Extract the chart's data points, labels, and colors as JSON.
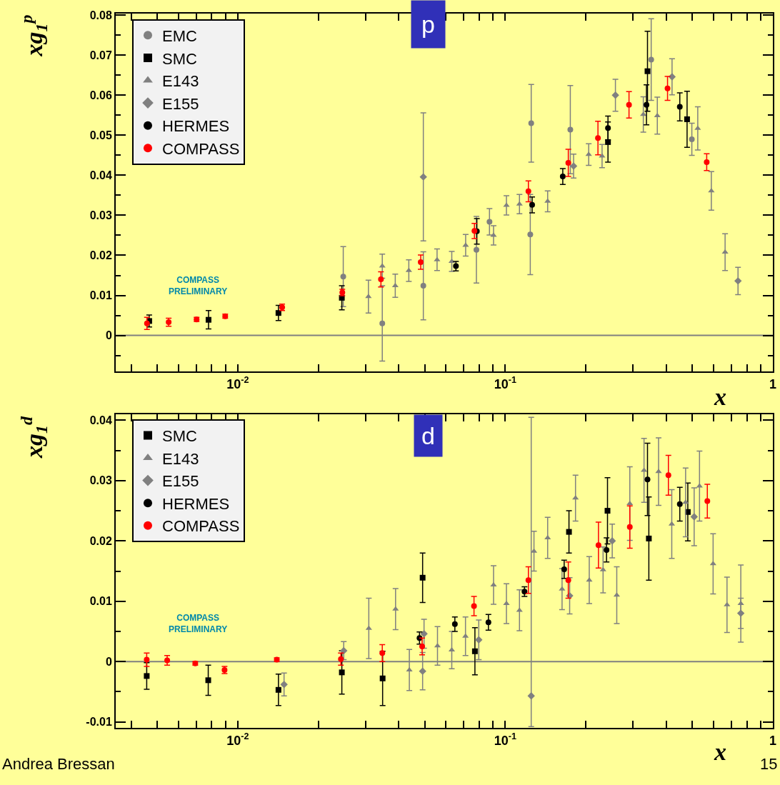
{
  "chart_data": [
    {
      "type": "scatter",
      "ylabel": "xg$_{1}$$^{p}$",
      "xlabel": "x",
      "annotations": [
        "p",
        "COMPASS PRELIMINARY"
      ],
      "xlim": [
        0.0035,
        1
      ],
      "ylim": [
        -0.009,
        0.0804
      ],
      "log": "x",
      "grid": false,
      "legend": "top left",
      "xticks": [
        {
          "value": 0.004,
          "label": null
        },
        {
          "value": 0.005,
          "label": null
        },
        {
          "value": 0.006,
          "label": null
        },
        {
          "value": 0.007,
          "label": null
        },
        {
          "value": 0.008,
          "label": null
        },
        {
          "value": 0.009,
          "label": null
        },
        {
          "value": 0.01,
          "label": "10$^{-2}$"
        },
        {
          "value": 0.02,
          "label": null
        },
        {
          "value": 0.03,
          "label": null
        },
        {
          "value": 0.04,
          "label": null
        },
        {
          "value": 0.05,
          "label": null
        },
        {
          "value": 0.06,
          "label": null
        },
        {
          "value": 0.07,
          "label": null
        },
        {
          "value": 0.08,
          "label": null
        },
        {
          "value": 0.09,
          "label": null
        },
        {
          "value": 0.1,
          "label": "10$^{-1}$"
        },
        {
          "value": 0.2,
          "label": null
        },
        {
          "value": 0.3,
          "label": null
        },
        {
          "value": 0.4,
          "label": null
        },
        {
          "value": 0.5,
          "label": null
        },
        {
          "value": 0.6,
          "label": null
        },
        {
          "value": 0.7,
          "label": null
        },
        {
          "value": 0.8,
          "label": null
        },
        {
          "value": 0.9,
          "label": null
        },
        {
          "value": 1,
          "label": "1"
        }
      ],
      "yticks": [
        0,
        0.01,
        0.02,
        0.03,
        0.04,
        0.05,
        0.06,
        0.07,
        0.08
      ],
      "ref_lines": [
        {
          "axis": "y",
          "value": 0,
          "color": "#808080"
        }
      ],
      "series": [
        {
          "name": "EMC",
          "color": "#808080",
          "marker": "circle",
          "x": [
            0.0248,
            0.0347,
            0.0494,
            0.078,
            0.0873,
            0.124,
            0.125,
            0.175,
            0.351,
            0.498
          ],
          "values": [
            0.0147,
            0.003,
            0.0124,
            0.0214,
            0.0284,
            0.0252,
            0.053,
            0.0514,
            0.0689,
            0.049
          ],
          "errors": [
            0.0075,
            0.0094,
            0.0085,
            0.0083,
            0.0033,
            0.01,
            0.0097,
            0.011,
            0.0102,
            0.004
          ]
        },
        {
          "name": "SMC",
          "color": "#000000",
          "marker": "square",
          "x": [
            0.00467,
            0.00778,
            0.0142,
            0.0245,
            0.242,
            0.34,
            0.478
          ],
          "values": [
            0.0036,
            0.0039,
            0.0056,
            0.0094,
            0.0483,
            0.066,
            0.054
          ],
          "errors": [
            0.0015,
            0.0023,
            0.0019,
            0.003,
            0.005,
            0.01,
            0.007
          ]
        },
        {
          "name": "E143",
          "color": "#808080",
          "marker": "triangle",
          "x": [
            0.0308,
            0.0347,
            0.0388,
            0.0436,
            0.0556,
            0.0631,
            0.0711,
            0.0904,
            0.101,
            0.113,
            0.144,
            0.205,
            0.23,
            0.328,
            0.37,
            0.524,
            0.589,
            0.663
          ],
          "values": [
            0.0097,
            0.0173,
            0.0124,
            0.0162,
            0.0189,
            0.0185,
            0.0225,
            0.025,
            0.0325,
            0.0328,
            0.0335,
            0.0452,
            0.0448,
            0.0552,
            0.0549,
            0.0517,
            0.0361,
            0.0208
          ],
          "errors": [
            0.0041,
            0.003,
            0.0029,
            0.0027,
            0.0027,
            0.0025,
            0.0027,
            0.0024,
            0.0024,
            0.0024,
            0.0026,
            0.0027,
            0.0029,
            0.0044,
            0.0046,
            0.0054,
            0.0048,
            0.0046
          ]
        },
        {
          "name": "E155",
          "color": "#808080",
          "marker": "diamond",
          "x": [
            0.0494,
            0.18,
            0.258,
            0.42,
            0.741
          ],
          "values": [
            0.0396,
            0.0423,
            0.06,
            0.0646,
            0.0136
          ],
          "errors": [
            0.016,
            0.003,
            0.004,
            0.0045,
            0.0034
          ]
        },
        {
          "name": "HERMES",
          "color": "#000000",
          "marker": "circle",
          "x": [
            0.0654,
            0.0783,
            0.126,
            0.164,
            0.242,
            0.337,
            0.449
          ],
          "values": [
            0.0173,
            0.026,
            0.0326,
            0.0397,
            0.0518,
            0.0576,
            0.0571
          ],
          "errors": [
            0.0012,
            0.0032,
            0.002,
            0.002,
            0.003,
            0.005,
            0.0035
          ]
        },
        {
          "name": "COMPASS",
          "color": "#ff0000",
          "marker": "circle",
          "x": [
            0.00458,
            0.00552,
            0.00702,
            0.00898,
            0.01466,
            0.0246,
            0.0343,
            0.0483,
            0.0767,
            0.122,
            0.172,
            0.222,
            0.29,
            0.404,
            0.566
          ],
          "values": [
            0.003,
            0.0033,
            0.004,
            0.0048,
            0.007,
            0.0107,
            0.014,
            0.0183,
            0.0261,
            0.036,
            0.0431,
            0.0493,
            0.0576,
            0.0617,
            0.0433
          ],
          "errors": [
            0.0015,
            0.001,
            0.0005,
            0.0005,
            0.0008,
            0.0008,
            0.0019,
            0.0018,
            0.0019,
            0.0026,
            0.0034,
            0.0042,
            0.0033,
            0.003,
            0.0021
          ]
        }
      ]
    },
    {
      "type": "scatter",
      "ylabel": "xg$_{1}$$^{d}$",
      "xlabel": "x",
      "annotations": [
        "d",
        "COMPASS PRELIMINARY",
        "Andrea Bressan",
        "15"
      ],
      "xlim": [
        0.0035,
        1
      ],
      "ylim": [
        -0.011,
        0.041
      ],
      "log": "x",
      "grid": false,
      "legend": "top left",
      "xticks": [
        {
          "value": 0.004,
          "label": null
        },
        {
          "value": 0.005,
          "label": null
        },
        {
          "value": 0.006,
          "label": null
        },
        {
          "value": 0.007,
          "label": null
        },
        {
          "value": 0.008,
          "label": null
        },
        {
          "value": 0.009,
          "label": null
        },
        {
          "value": 0.01,
          "label": "10$^{-2}$"
        },
        {
          "value": 0.02,
          "label": null
        },
        {
          "value": 0.03,
          "label": null
        },
        {
          "value": 0.04,
          "label": null
        },
        {
          "value": 0.05,
          "label": null
        },
        {
          "value": 0.06,
          "label": null
        },
        {
          "value": 0.07,
          "label": null
        },
        {
          "value": 0.08,
          "label": null
        },
        {
          "value": 0.09,
          "label": null
        },
        {
          "value": 0.1,
          "label": "10$^{-1}$"
        },
        {
          "value": 0.2,
          "label": null
        },
        {
          "value": 0.3,
          "label": null
        },
        {
          "value": 0.4,
          "label": null
        },
        {
          "value": 0.5,
          "label": null
        },
        {
          "value": 0.6,
          "label": null
        },
        {
          "value": 0.7,
          "label": null
        },
        {
          "value": 0.8,
          "label": null
        },
        {
          "value": 0.9,
          "label": null
        },
        {
          "value": 1,
          "label": "1"
        }
      ],
      "yticks": [
        -0.01,
        0,
        0.01,
        0.02,
        0.03,
        0.04
      ],
      "ref_lines": [
        {
          "axis": "y",
          "value": 0,
          "color": "#808080"
        }
      ],
      "series": [
        {
          "name": "SMC",
          "color": "#000000",
          "marker": "square",
          "x": [
            0.00457,
            0.00776,
            0.0142,
            0.0245,
            0.0348,
            0.0491,
            0.077,
            0.173,
            0.241,
            0.344,
            0.481
          ],
          "values": [
            -0.0024,
            -0.0031,
            -0.0047,
            -0.0018,
            -0.0028,
            0.0139,
            0.0017,
            0.0215,
            0.025,
            0.0204,
            0.0248
          ],
          "errors": [
            0.0022,
            0.0025,
            0.0026,
            0.0036,
            0.0045,
            0.0041,
            0.0039,
            0.0035,
            0.0055,
            0.0069,
            0.0048
          ]
        },
        {
          "name": "E143",
          "color": "#808080",
          "marker": "triangle",
          "x": [
            0.0309,
            0.0389,
            0.0438,
            0.0558,
            0.0631,
            0.071,
            0.0904,
            0.101,
            0.113,
            0.128,
            0.144,
            0.163,
            0.183,
            0.206,
            0.232,
            0.261,
            0.292,
            0.33,
            0.374,
            0.419,
            0.472,
            0.532,
            0.598,
            0.674,
            0.759
          ],
          "values": [
            0.0055,
            0.0087,
            -0.0014,
            0.0026,
            0.0019,
            0.0042,
            0.0127,
            0.0096,
            0.0085,
            0.0183,
            0.0205,
            0.012,
            0.0271,
            0.0135,
            0.0152,
            0.011,
            0.0262,
            0.0317,
            0.0315,
            0.0228,
            0.0264,
            0.0291,
            0.0162,
            0.0094,
            0.0096
          ],
          "errors": [
            0.005,
            0.0034,
            0.0034,
            0.0032,
            0.0031,
            0.0032,
            0.0032,
            0.0033,
            0.0034,
            0.0033,
            0.0034,
            0.0034,
            0.0038,
            0.0039,
            0.0038,
            0.0047,
            0.0061,
            0.0053,
            0.0056,
            0.0057,
            0.0057,
            0.0058,
            0.005,
            0.0046,
            0.0064
          ]
        },
        {
          "name": "E155",
          "color": "#808080",
          "marker": "diamond",
          "x": [
            0.0149,
            0.0249,
            0.0491,
            0.0497,
            0.0796,
            0.125,
            0.174,
            0.251,
            0.508,
            0.759
          ],
          "values": [
            -0.0038,
            0.0018,
            -0.0016,
            0.0046,
            0.0036,
            -0.0057,
            0.0109,
            0.02,
            0.024,
            0.008
          ],
          "errors": [
            0.0019,
            0.0015,
            0.0031,
            0.0024,
            0.0033,
            [
              -0.0108,
              0.0405
            ],
            0.003,
            0.0028,
            0.0048,
            0.0025
          ]
        },
        {
          "name": "HERMES",
          "color": "#000000",
          "marker": "circle",
          "x": [
            0.0478,
            0.0648,
            0.0865,
            0.118,
            0.166,
            0.239,
            0.34,
            0.449
          ],
          "values": [
            0.0039,
            0.0062,
            0.0065,
            0.0116,
            0.0153,
            0.0185,
            0.0302,
            0.0261
          ],
          "errors": [
            0.001,
            0.0012,
            0.0013,
            0.0008,
            0.0015,
            0.002,
            0.006,
            0.0028
          ]
        },
        {
          "name": "COMPASS",
          "color": "#ff0000",
          "marker": "circle",
          "x": [
            0.00457,
            0.00545,
            0.00694,
            0.00893,
            0.014,
            0.0243,
            0.0347,
            0.0489,
            0.0764,
            0.122,
            0.172,
            0.223,
            0.292,
            0.407,
            0.569
          ],
          "values": [
            0.0003,
            0.0002,
            -0.0003,
            -0.0014,
            0.0003,
            0.0004,
            0.0014,
            0.0025,
            0.0092,
            0.0135,
            0.0135,
            0.0193,
            0.0223,
            0.0309,
            0.0266
          ],
          "errors": [
            0.0011,
            0.0008,
            0.0003,
            0.0006,
            0.0003,
            0.001,
            0.0014,
            0.0014,
            0.0016,
            0.0022,
            0.003,
            0.0038,
            0.0035,
            0.0033,
            0.0028
          ]
        }
      ]
    }
  ]
}
